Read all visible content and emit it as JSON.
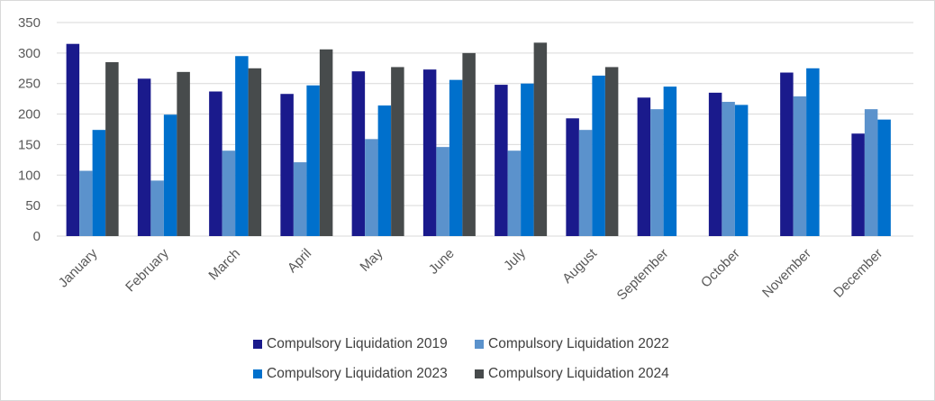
{
  "chart_data": {
    "type": "bar",
    "title": "",
    "xlabel": "",
    "ylabel": "",
    "ylim": [
      0,
      350
    ],
    "yticks": [
      0,
      50,
      100,
      150,
      200,
      250,
      300,
      350
    ],
    "grid": true,
    "legend_position": "bottom",
    "categories": [
      "January",
      "February",
      "March",
      "April",
      "May",
      "June",
      "July",
      "August",
      "September",
      "October",
      "November",
      "December"
    ],
    "series": [
      {
        "name": "Compulsory Liquidation 2019",
        "color": "#1a1a8c",
        "values": [
          315,
          258,
          237,
          233,
          270,
          273,
          248,
          193,
          227,
          235,
          268,
          168
        ]
      },
      {
        "name": "Compulsory Liquidation 2022",
        "color": "#5b92cc",
        "values": [
          107,
          91,
          140,
          121,
          159,
          146,
          140,
          174,
          208,
          220,
          229,
          208
        ]
      },
      {
        "name": "Compulsory Liquidation 2023",
        "color": "#0070cc",
        "values": [
          174,
          199,
          295,
          247,
          214,
          256,
          250,
          263,
          245,
          215,
          275,
          191
        ]
      },
      {
        "name": "Compulsory Liquidation 2024",
        "color": "#474b4c",
        "values": [
          285,
          269,
          275,
          306,
          277,
          300,
          317,
          277,
          null,
          null,
          null,
          null
        ]
      }
    ]
  }
}
